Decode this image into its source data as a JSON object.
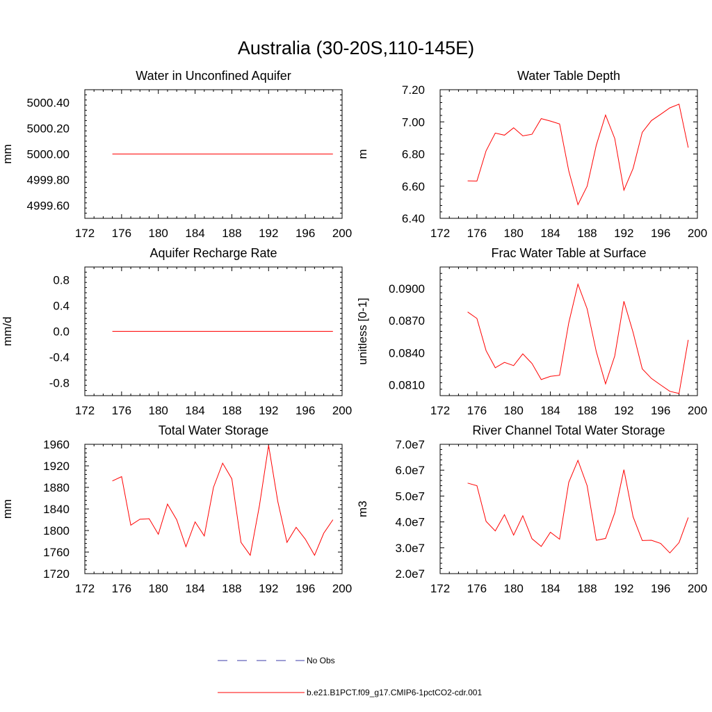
{
  "figure": {
    "title": "Australia (30-20S,110-145E)",
    "legend": [
      {
        "label": "No Obs",
        "color": "#3b3ba8",
        "style": "dashed"
      },
      {
        "label": "b.e21.B1PCT.f09_g17.CMIP6-1pctCO2-cdr.001",
        "color": "#ff0000",
        "style": "solid"
      }
    ]
  },
  "chart_data": [
    {
      "type": "line",
      "title": "Water in Unconfined Aquifer",
      "ylabel": "mm",
      "xlim": [
        172,
        200
      ],
      "xticks": [
        "172",
        "176",
        "180",
        "184",
        "188",
        "192",
        "196",
        "200"
      ],
      "ylim": [
        4999.5,
        5000.5
      ],
      "yticks": [
        "5000.40",
        "5000.20",
        "5000.00",
        "4999.80",
        "4999.60"
      ],
      "ytick_values": [
        5000.4,
        5000.2,
        5000.0,
        4999.8,
        4999.6
      ],
      "series": [
        {
          "name": "b.e21.B1PCT.f09_g17.CMIP6-1pctCO2-cdr.001",
          "color": "#ff0000",
          "x": [
            175,
            176,
            177,
            178,
            179,
            180,
            181,
            182,
            183,
            184,
            185,
            186,
            187,
            188,
            189,
            190,
            191,
            192,
            193,
            194,
            195,
            196,
            197,
            198,
            199
          ],
          "values": [
            5000,
            5000,
            5000,
            5000,
            5000,
            5000,
            5000,
            5000,
            5000,
            5000,
            5000,
            5000,
            5000,
            5000,
            5000,
            5000,
            5000,
            5000,
            5000,
            5000,
            5000,
            5000,
            5000,
            5000,
            5000
          ]
        }
      ]
    },
    {
      "type": "line",
      "title": "Water Table Depth",
      "ylabel": "m",
      "xlim": [
        172,
        200
      ],
      "xticks": [
        "172",
        "176",
        "180",
        "184",
        "188",
        "192",
        "196",
        "200"
      ],
      "ylim": [
        6.4,
        7.2
      ],
      "yticks": [
        "7.20",
        "7.00",
        "6.80",
        "6.60",
        "6.40"
      ],
      "ytick_values": [
        7.2,
        7.0,
        6.8,
        6.6,
        6.4
      ],
      "series": [
        {
          "name": "b.e21.B1PCT.f09_g17.CMIP6-1pctCO2-cdr.001",
          "color": "#ff0000",
          "x": [
            175,
            176,
            177,
            178,
            179,
            180,
            181,
            182,
            183,
            184,
            185,
            186,
            187,
            188,
            189,
            190,
            191,
            192,
            193,
            194,
            195,
            196,
            197,
            198,
            199
          ],
          "values": [
            6.633,
            6.632,
            6.82,
            6.93,
            6.917,
            6.963,
            6.913,
            6.923,
            7.02,
            7.005,
            6.987,
            6.695,
            6.485,
            6.6,
            6.855,
            7.042,
            6.897,
            6.575,
            6.71,
            6.935,
            7.008,
            7.047,
            7.087,
            7.11,
            6.84
          ]
        }
      ]
    },
    {
      "type": "line",
      "title": "Aquifer Recharge Rate",
      "ylabel": "mm/d",
      "xlim": [
        172,
        200
      ],
      "xticks": [
        "172",
        "176",
        "180",
        "184",
        "188",
        "192",
        "196",
        "200"
      ],
      "ylim": [
        -1.0,
        1.0
      ],
      "yticks": [
        "0.8",
        "0.4",
        "0.0",
        "-0.4",
        "-0.8"
      ],
      "ytick_values": [
        0.8,
        0.4,
        0.0,
        -0.4,
        -0.8
      ],
      "series": [
        {
          "name": "b.e21.B1PCT.f09_g17.CMIP6-1pctCO2-cdr.001",
          "color": "#ff0000",
          "x": [
            175,
            176,
            177,
            178,
            179,
            180,
            181,
            182,
            183,
            184,
            185,
            186,
            187,
            188,
            189,
            190,
            191,
            192,
            193,
            194,
            195,
            196,
            197,
            198,
            199
          ],
          "values": [
            0,
            0,
            0,
            0,
            0,
            0,
            0,
            0,
            0,
            0,
            0,
            0,
            0,
            0,
            0,
            0,
            0,
            0,
            0,
            0,
            0,
            0,
            0,
            0,
            0
          ]
        }
      ]
    },
    {
      "type": "line",
      "title": "Frac Water Table at Surface",
      "ylabel": "unitless [0-1]",
      "xlim": [
        172,
        200
      ],
      "xticks": [
        "172",
        "176",
        "180",
        "184",
        "188",
        "192",
        "196",
        "200"
      ],
      "ylim": [
        0.08,
        0.092
      ],
      "yticks": [
        "0.0900",
        "0.0870",
        "0.0840",
        "0.0810"
      ],
      "ytick_values": [
        0.09,
        0.087,
        0.084,
        0.081
      ],
      "series": [
        {
          "name": "b.e21.B1PCT.f09_g17.CMIP6-1pctCO2-cdr.001",
          "color": "#ff0000",
          "x": [
            175,
            176,
            177,
            178,
            179,
            180,
            181,
            182,
            183,
            184,
            185,
            186,
            187,
            188,
            189,
            190,
            191,
            192,
            193,
            194,
            195,
            196,
            197,
            198,
            199
          ],
          "values": [
            0.0878,
            0.0872,
            0.0842,
            0.0826,
            0.0831,
            0.0828,
            0.0839,
            0.083,
            0.0815,
            0.0818,
            0.0819,
            0.0868,
            0.0904,
            0.0881,
            0.0841,
            0.0811,
            0.0837,
            0.0888,
            0.0859,
            0.0825,
            0.0816,
            0.081,
            0.0804,
            0.0802,
            0.0852
          ]
        }
      ]
    },
    {
      "type": "line",
      "title": "Total Water Storage",
      "ylabel": "mm",
      "xlim": [
        172,
        200
      ],
      "xticks": [
        "172",
        "176",
        "180",
        "184",
        "188",
        "192",
        "196",
        "200"
      ],
      "ylim": [
        1720,
        1960
      ],
      "yticks": [
        "1960",
        "1920",
        "1880",
        "1840",
        "1800",
        "1760",
        "1720"
      ],
      "ytick_values": [
        1960,
        1920,
        1880,
        1840,
        1800,
        1760,
        1720
      ],
      "series": [
        {
          "name": "b.e21.B1PCT.f09_g17.CMIP6-1pctCO2-cdr.001",
          "color": "#ff0000",
          "x": [
            175,
            176,
            177,
            178,
            179,
            180,
            181,
            182,
            183,
            184,
            185,
            186,
            187,
            188,
            189,
            190,
            191,
            192,
            193,
            194,
            195,
            196,
            197,
            198,
            199
          ],
          "values": [
            1892,
            1900,
            1810,
            1821,
            1822,
            1793,
            1849,
            1820,
            1770,
            1816,
            1790,
            1880,
            1925,
            1896,
            1778,
            1754,
            1846,
            1958,
            1854,
            1778,
            1806,
            1784,
            1754,
            1795,
            1820
          ]
        }
      ]
    },
    {
      "type": "line",
      "title": "River Channel Total Water Storage",
      "ylabel": "m3",
      "xlim": [
        172,
        200
      ],
      "xticks": [
        "172",
        "176",
        "180",
        "184",
        "188",
        "192",
        "196",
        "200"
      ],
      "ylim": [
        20000000,
        70000000
      ],
      "yticks": [
        "7.0e7",
        "6.0e7",
        "5.0e7",
        "4.0e7",
        "3.0e7",
        "2.0e7"
      ],
      "ytick_values": [
        70000000,
        60000000,
        50000000,
        40000000,
        30000000,
        20000000
      ],
      "series": [
        {
          "name": "b.e21.B1PCT.f09_g17.CMIP6-1pctCO2-cdr.001",
          "color": "#ff0000",
          "x": [
            175,
            176,
            177,
            178,
            179,
            180,
            181,
            182,
            183,
            184,
            185,
            186,
            187,
            188,
            189,
            190,
            191,
            192,
            193,
            194,
            195,
            196,
            197,
            198,
            199
          ],
          "values": [
            55000000,
            54000000,
            40200000,
            36500000,
            42800000,
            34900000,
            42400000,
            33500000,
            30500000,
            36000000,
            33300000,
            55300000,
            63800000,
            54000000,
            32900000,
            33600000,
            43500000,
            60200000,
            42000000,
            32800000,
            32900000,
            31700000,
            28000000,
            32000000,
            41700000
          ]
        }
      ]
    }
  ]
}
